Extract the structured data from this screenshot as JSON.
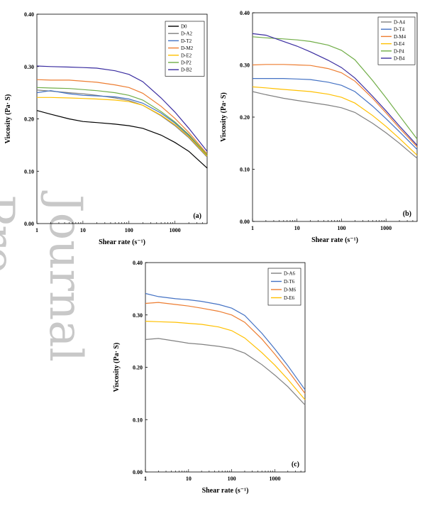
{
  "watermark": {
    "text": "Journal Pre-proof"
  },
  "chart_data": [
    {
      "type": "line",
      "panel_label": "(a)",
      "xlabel": "Shear rate (s⁻¹)",
      "ylabel": "Viscosity (Pa· S)",
      "xscale": "log",
      "xlim": [
        1,
        5000
      ],
      "ylim": [
        0.0,
        0.4
      ],
      "xticks": [
        1,
        10,
        100,
        1000
      ],
      "xtick_labels": [
        "1",
        "10",
        "100",
        "1000"
      ],
      "yticks": [
        0.0,
        0.1,
        0.2,
        0.3,
        0.4
      ],
      "ytick_labels": [
        "0.00",
        "0.10",
        "0.20",
        "0.30",
        "0.40"
      ],
      "grid": false,
      "legend": "top-right",
      "x": [
        1,
        2,
        5,
        10,
        20,
        50,
        100,
        200,
        500,
        1000,
        2000,
        5000
      ],
      "series": [
        {
          "name": "D0",
          "color": "#000000",
          "values": [
            0.216,
            0.209,
            0.2,
            0.195,
            0.193,
            0.19,
            0.187,
            0.182,
            0.169,
            0.155,
            0.138,
            0.106
          ]
        },
        {
          "name": "D-A2",
          "color": "#808080",
          "values": [
            0.255,
            0.253,
            0.25,
            0.248,
            0.245,
            0.24,
            0.235,
            0.226,
            0.206,
            0.187,
            0.164,
            0.127
          ]
        },
        {
          "name": "D-T2",
          "color": "#4472c4",
          "values": [
            0.25,
            0.254,
            0.248,
            0.245,
            0.244,
            0.242,
            0.238,
            0.23,
            0.211,
            0.192,
            0.168,
            0.13
          ]
        },
        {
          "name": "D-M2",
          "color": "#ed7d31",
          "values": [
            0.275,
            0.274,
            0.274,
            0.272,
            0.27,
            0.265,
            0.26,
            0.249,
            0.224,
            0.201,
            0.174,
            0.133
          ]
        },
        {
          "name": "D-E2",
          "color": "#ffc000",
          "values": [
            0.241,
            0.241,
            0.24,
            0.239,
            0.238,
            0.236,
            0.233,
            0.226,
            0.207,
            0.189,
            0.166,
            0.129
          ]
        },
        {
          "name": "D-P2",
          "color": "#70ad47",
          "values": [
            0.26,
            0.259,
            0.258,
            0.256,
            0.254,
            0.25,
            0.245,
            0.236,
            0.214,
            0.194,
            0.17,
            0.131
          ]
        },
        {
          "name": "D-B2",
          "color": "#3a2da0",
          "values": [
            0.301,
            0.3,
            0.299,
            0.298,
            0.297,
            0.292,
            0.285,
            0.271,
            0.24,
            0.213,
            0.182,
            0.138
          ]
        }
      ]
    },
    {
      "type": "line",
      "panel_label": "(b)",
      "xlabel": "Shear rate (s⁻¹)",
      "ylabel": "Viscosity (Pa· S)",
      "xscale": "log",
      "xlim": [
        1,
        5000
      ],
      "ylim": [
        0.0,
        0.4
      ],
      "xticks": [
        1,
        10,
        100,
        1000
      ],
      "xtick_labels": [
        "1",
        "10",
        "100",
        "1000"
      ],
      "yticks": [
        0.0,
        0.1,
        0.2,
        0.3,
        0.4
      ],
      "ytick_labels": [
        "0.00",
        "0.10",
        "0.20",
        "0.30",
        "0.40"
      ],
      "grid": false,
      "legend": "top-right",
      "x": [
        1,
        2,
        5,
        10,
        20,
        50,
        100,
        200,
        500,
        1000,
        2000,
        5000
      ],
      "series": [
        {
          "name": "D-A4",
          "color": "#808080",
          "values": [
            0.249,
            0.243,
            0.236,
            0.232,
            0.228,
            0.223,
            0.218,
            0.209,
            0.188,
            0.17,
            0.15,
            0.121
          ]
        },
        {
          "name": "D-T4",
          "color": "#4472c4",
          "values": [
            0.274,
            0.274,
            0.274,
            0.273,
            0.272,
            0.267,
            0.261,
            0.249,
            0.221,
            0.197,
            0.172,
            0.138
          ]
        },
        {
          "name": "D-M4",
          "color": "#ed7d31",
          "values": [
            0.3,
            0.301,
            0.301,
            0.3,
            0.299,
            0.293,
            0.285,
            0.269,
            0.236,
            0.208,
            0.179,
            0.143
          ]
        },
        {
          "name": "D-E4",
          "color": "#ffc000",
          "values": [
            0.258,
            0.256,
            0.253,
            0.251,
            0.249,
            0.244,
            0.238,
            0.227,
            0.203,
            0.182,
            0.159,
            0.127
          ]
        },
        {
          "name": "D-P4",
          "color": "#70ad47",
          "values": [
            0.354,
            0.352,
            0.35,
            0.348,
            0.345,
            0.338,
            0.328,
            0.31,
            0.27,
            0.237,
            0.203,
            0.158
          ]
        },
        {
          "name": "D-B4",
          "color": "#3a2da0",
          "values": [
            0.36,
            0.357,
            0.345,
            0.336,
            0.325,
            0.309,
            0.295,
            0.275,
            0.24,
            0.212,
            0.183,
            0.146
          ]
        }
      ]
    },
    {
      "type": "line",
      "panel_label": "(c)",
      "xlabel": "Shear rate (s⁻¹)",
      "ylabel": "Viscosity (Pa· S)",
      "xscale": "log",
      "xlim": [
        1,
        5000
      ],
      "ylim": [
        0.0,
        0.4
      ],
      "xticks": [
        1,
        10,
        100,
        1000
      ],
      "xtick_labels": [
        "1",
        "10",
        "100",
        "1000"
      ],
      "yticks": [
        0.0,
        0.1,
        0.2,
        0.3,
        0.4
      ],
      "ytick_labels": [
        "0.00",
        "0.10",
        "0.20",
        "0.30",
        "0.40"
      ],
      "grid": false,
      "legend": "top-right",
      "x": [
        1,
        2,
        5,
        10,
        20,
        50,
        100,
        200,
        500,
        1000,
        2000,
        5000
      ],
      "series": [
        {
          "name": "D-A6",
          "color": "#808080",
          "values": [
            0.253,
            0.255,
            0.25,
            0.246,
            0.244,
            0.24,
            0.236,
            0.227,
            0.205,
            0.185,
            0.163,
            0.128
          ]
        },
        {
          "name": "D-T6",
          "color": "#4472c4",
          "values": [
            0.341,
            0.335,
            0.331,
            0.329,
            0.326,
            0.32,
            0.313,
            0.299,
            0.265,
            0.235,
            0.203,
            0.157
          ]
        },
        {
          "name": "D-M6",
          "color": "#ed7d31",
          "values": [
            0.322,
            0.324,
            0.32,
            0.317,
            0.313,
            0.307,
            0.3,
            0.286,
            0.254,
            0.225,
            0.194,
            0.15
          ]
        },
        {
          "name": "D-E6",
          "color": "#ffc000",
          "values": [
            0.288,
            0.287,
            0.286,
            0.284,
            0.282,
            0.277,
            0.27,
            0.256,
            0.228,
            0.204,
            0.177,
            0.138
          ]
        }
      ]
    }
  ]
}
